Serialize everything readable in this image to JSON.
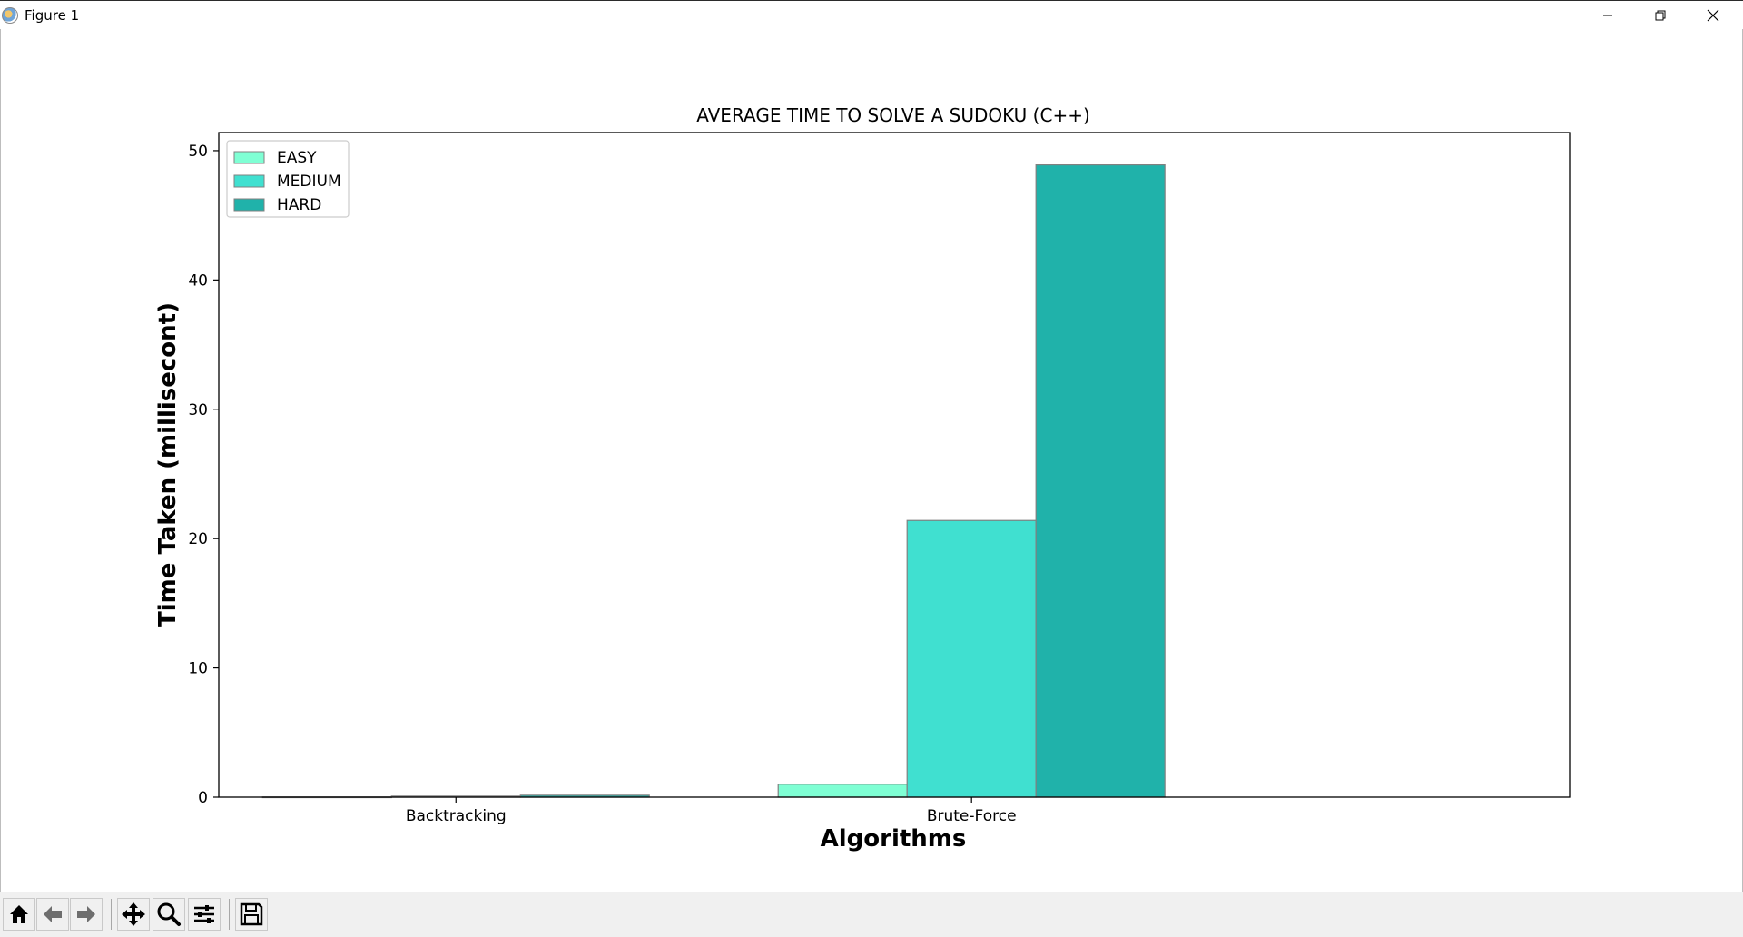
{
  "window": {
    "title": "Figure 1",
    "controls": [
      "minimize-icon",
      "restore-icon",
      "close-icon"
    ]
  },
  "toolbar": {
    "buttons": [
      "home-icon",
      "back-arrow-icon",
      "forward-arrow-icon",
      "pan-move-icon",
      "zoom-magnifier-icon",
      "configure-subplots-icon",
      "save-disk-icon"
    ]
  },
  "colors": {
    "easy": "#7fffd4",
    "medium": "#40e0d0",
    "hard": "#20b2aa",
    "bar_edge": "#808080"
  },
  "chart_data": {
    "type": "bar",
    "title": "AVERAGE TIME TO SOLVE A SUDOKU (C++)",
    "xlabel": "Algorithms",
    "ylabel": "Time Taken (millisecont)",
    "categories": [
      "Backtracking",
      "Brute-Force"
    ],
    "series": [
      {
        "name": "EASY",
        "values": [
          0.02,
          1.0
        ],
        "color": "#7fffd4"
      },
      {
        "name": "MEDIUM",
        "values": [
          0.08,
          21.4
        ],
        "color": "#40e0d0"
      },
      {
        "name": "HARD",
        "values": [
          0.15,
          48.9
        ],
        "color": "#20b2aa"
      }
    ],
    "ylim": [
      0,
      51.4
    ],
    "yticks": [
      "0",
      "10",
      "20",
      "30",
      "40",
      "50"
    ],
    "grid": false,
    "legend_position": "upper-left"
  }
}
